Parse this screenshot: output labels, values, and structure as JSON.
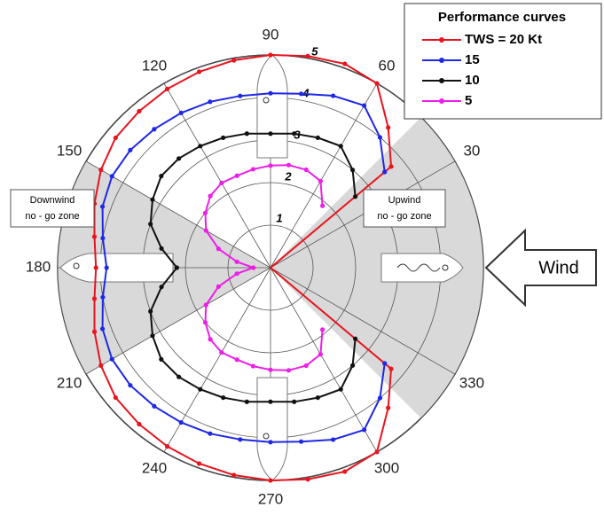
{
  "chart_data": {
    "type": "polar",
    "theta": [
      40,
      50,
      60,
      70,
      80,
      90,
      100,
      110,
      120,
      130,
      140,
      150,
      160,
      170,
      180,
      190,
      200,
      210,
      220,
      230,
      240,
      250,
      260,
      270,
      280,
      290,
      300,
      310,
      320
    ],
    "series": [
      {
        "name": "TWS = 20 Kt",
        "color": "#e8141e",
        "values": [
          3.7,
          4.3,
          5.0,
          5.1,
          5.05,
          5.0,
          4.95,
          4.9,
          4.85,
          4.8,
          4.75,
          4.6,
          4.4,
          4.2,
          4.1,
          4.2,
          4.4,
          4.6,
          4.75,
          4.8,
          4.85,
          4.9,
          4.95,
          5.0,
          5.05,
          5.1,
          5.0,
          4.3,
          3.7
        ]
      },
      {
        "name": "15",
        "color": "#1e28e6",
        "values": [
          3.5,
          4.0,
          4.4,
          4.3,
          4.15,
          4.1,
          4.1,
          4.15,
          4.2,
          4.25,
          4.3,
          4.3,
          4.2,
          4.0,
          3.85,
          4.0,
          4.2,
          4.3,
          4.3,
          4.25,
          4.2,
          4.15,
          4.1,
          4.1,
          4.15,
          4.3,
          4.4,
          4.0,
          3.5
        ]
      },
      {
        "name": "10",
        "color": "#111111",
        "values": [
          2.6,
          3.0,
          3.3,
          3.25,
          3.2,
          3.15,
          3.2,
          3.25,
          3.3,
          3.35,
          3.35,
          3.2,
          3.0,
          2.6,
          2.2,
          2.6,
          3.0,
          3.2,
          3.35,
          3.35,
          3.3,
          3.25,
          3.2,
          3.15,
          3.2,
          3.25,
          3.3,
          3.0,
          2.6
        ]
      },
      {
        "name": "5",
        "color": "#ee1ee8",
        "values": [
          null,
          1.9,
          2.35,
          2.45,
          2.45,
          2.4,
          2.35,
          2.3,
          2.3,
          2.2,
          2.0,
          1.75,
          1.3,
          0.8,
          0.4,
          0.8,
          1.3,
          1.75,
          2.0,
          2.2,
          2.3,
          2.3,
          2.35,
          2.4,
          2.45,
          2.45,
          2.35,
          1.9,
          null
        ]
      }
    ],
    "rlim": [
      0,
      5
    ],
    "rticks": [
      1,
      2,
      3,
      4,
      5
    ],
    "thetaticks": [
      30,
      60,
      90,
      120,
      150,
      180,
      210,
      240,
      270,
      300,
      330
    ],
    "legend_title": "Performance curves",
    "annotations": {
      "downwind": [
        "Downwind",
        "no - go zone"
      ],
      "upwind": [
        "Upwind",
        "no - go zone"
      ],
      "wind": "Wind"
    }
  }
}
